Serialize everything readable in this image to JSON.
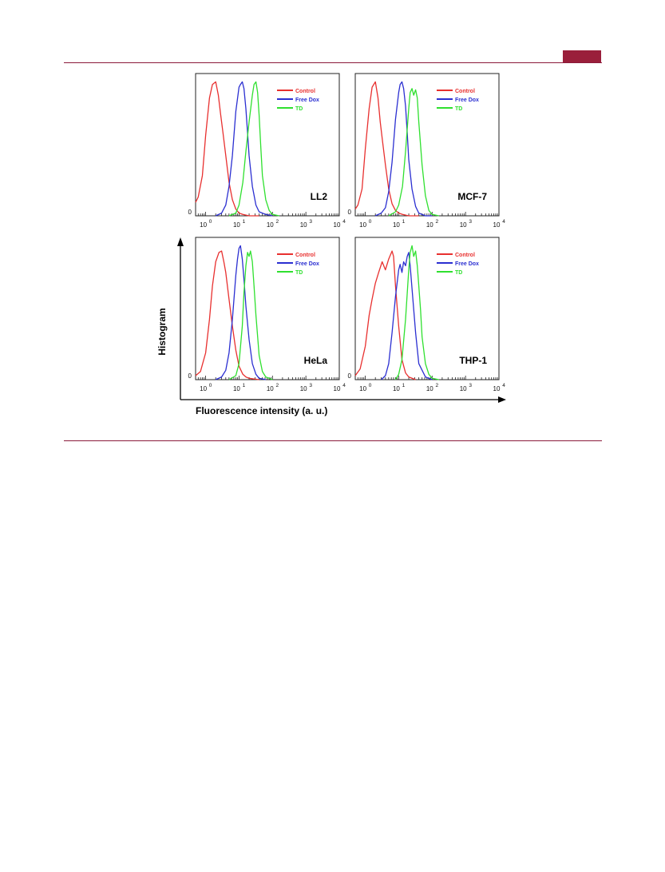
{
  "colors": {
    "rule": "#8b1a3a",
    "tab": "#9a1f3b",
    "control": "#e8302f",
    "free_dox": "#2b2fd1",
    "td": "#2fe02f"
  },
  "figure": {
    "ylabel": "Histogram",
    "xlabel": "Fluorescence intensity (a. u.)"
  },
  "chart_data": [
    {
      "type": "line",
      "title": "LL2",
      "xscale": "log",
      "xlim": [
        0.5,
        10000
      ],
      "ylim": [
        0,
        1.05
      ],
      "ytick_labels": [
        "0"
      ],
      "xticks": [
        {
          "base": "10",
          "exp": "0"
        },
        {
          "base": "10",
          "exp": "1"
        },
        {
          "base": "10",
          "exp": "2"
        },
        {
          "base": "10",
          "exp": "3"
        },
        {
          "base": "10",
          "exp": "4"
        }
      ],
      "legend": {
        "position": "top-right",
        "entries": [
          "Control",
          "Free Dox",
          "TD"
        ]
      },
      "series": [
        {
          "name": "Control",
          "x": [
            0.5,
            0.6,
            0.8,
            1.0,
            1.3,
            1.6,
            2.0,
            2.4,
            2.8,
            3.3,
            4.0,
            5.0,
            6.3,
            8.0,
            10,
            13,
            20,
            40
          ],
          "y": [
            0.1,
            0.14,
            0.3,
            0.6,
            0.88,
            0.98,
            1.0,
            0.9,
            0.76,
            0.62,
            0.45,
            0.25,
            0.12,
            0.05,
            0.02,
            0.01,
            0.0,
            0.0
          ]
        },
        {
          "name": "Free Dox",
          "x": [
            2,
            3,
            4,
            5,
            6.3,
            8,
            10,
            11,
            12.5,
            14,
            16,
            18,
            20,
            25,
            32,
            40,
            63,
            100
          ],
          "y": [
            0.0,
            0.02,
            0.08,
            0.22,
            0.45,
            0.78,
            0.96,
            0.98,
            1.0,
            0.95,
            0.8,
            0.62,
            0.45,
            0.22,
            0.08,
            0.03,
            0.01,
            0.0
          ]
        },
        {
          "name": "TD",
          "x": [
            5,
            8,
            10,
            13,
            16,
            20,
            25,
            28,
            32,
            36,
            40,
            45,
            50,
            63,
            80,
            100,
            160
          ],
          "y": [
            0.0,
            0.02,
            0.08,
            0.25,
            0.48,
            0.7,
            0.9,
            0.98,
            1.0,
            0.92,
            0.75,
            0.5,
            0.3,
            0.12,
            0.04,
            0.01,
            0.0
          ]
        }
      ]
    },
    {
      "type": "line",
      "title": "MCF-7",
      "xscale": "log",
      "xlim": [
        0.5,
        10000
      ],
      "ylim": [
        0,
        1.05
      ],
      "ytick_labels": [
        "0"
      ],
      "xticks": [
        {
          "base": "10",
          "exp": "0"
        },
        {
          "base": "10",
          "exp": "1"
        },
        {
          "base": "10",
          "exp": "2"
        },
        {
          "base": "10",
          "exp": "3"
        },
        {
          "base": "10",
          "exp": "4"
        }
      ],
      "legend": {
        "position": "top-right",
        "entries": [
          "Control",
          "Free Dox",
          "TD"
        ]
      },
      "series": [
        {
          "name": "Control",
          "x": [
            0.5,
            0.6,
            0.8,
            1.0,
            1.3,
            1.6,
            2.0,
            2.4,
            2.8,
            3.3,
            4.0,
            5.0,
            6.3,
            8.0,
            10,
            13,
            20,
            40
          ],
          "y": [
            0.05,
            0.08,
            0.2,
            0.5,
            0.8,
            0.96,
            1.0,
            0.88,
            0.7,
            0.55,
            0.38,
            0.2,
            0.09,
            0.04,
            0.02,
            0.01,
            0.0,
            0.0
          ]
        },
        {
          "name": "Free Dox",
          "x": [
            2,
            3,
            4,
            5,
            6.3,
            8,
            10,
            11,
            12.5,
            14,
            16,
            18,
            20,
            25,
            32,
            40,
            63,
            100
          ],
          "y": [
            0.0,
            0.02,
            0.06,
            0.18,
            0.4,
            0.72,
            0.92,
            0.98,
            1.0,
            0.95,
            0.82,
            0.62,
            0.42,
            0.2,
            0.07,
            0.02,
            0.0,
            0.0
          ]
        },
        {
          "name": "TD",
          "x": [
            5,
            8,
            10,
            13,
            16,
            20,
            22,
            25,
            28,
            32,
            36,
            40,
            50,
            63,
            80,
            100,
            160
          ],
          "y": [
            0.0,
            0.03,
            0.08,
            0.22,
            0.48,
            0.8,
            0.92,
            0.95,
            0.9,
            0.94,
            0.88,
            0.7,
            0.38,
            0.15,
            0.04,
            0.01,
            0.0
          ]
        }
      ]
    },
    {
      "type": "line",
      "title": "HeLa",
      "xscale": "log",
      "xlim": [
        0.5,
        10000
      ],
      "ylim": [
        0,
        1.05
      ],
      "ytick_labels": [
        "0"
      ],
      "xticks": [
        {
          "base": "10",
          "exp": "0"
        },
        {
          "base": "10",
          "exp": "1"
        },
        {
          "base": "10",
          "exp": "2"
        },
        {
          "base": "10",
          "exp": "3"
        },
        {
          "base": "10",
          "exp": "4"
        }
      ],
      "legend": {
        "position": "top-right",
        "entries": [
          "Control",
          "Free Dox",
          "TD"
        ]
      },
      "series": [
        {
          "name": "Control",
          "x": [
            0.5,
            0.7,
            1.0,
            1.3,
            1.6,
            2.0,
            2.5,
            3.0,
            3.5,
            4.0,
            5.0,
            6.3,
            8.0,
            10,
            13,
            16,
            20,
            40
          ],
          "y": [
            0.03,
            0.06,
            0.2,
            0.45,
            0.7,
            0.88,
            0.95,
            0.96,
            0.88,
            0.8,
            0.6,
            0.4,
            0.22,
            0.1,
            0.04,
            0.02,
            0.01,
            0.0
          ]
        },
        {
          "name": "Free Dox",
          "x": [
            2,
            3,
            4,
            5,
            6.3,
            8,
            9,
            10,
            11,
            12.5,
            14,
            16,
            20,
            25,
            32,
            40,
            63
          ],
          "y": [
            0.0,
            0.02,
            0.07,
            0.2,
            0.45,
            0.78,
            0.9,
            0.98,
            1.0,
            0.9,
            0.75,
            0.55,
            0.3,
            0.12,
            0.04,
            0.01,
            0.0
          ]
        },
        {
          "name": "TD",
          "x": [
            5,
            8,
            10,
            12.5,
            14,
            16,
            18,
            20,
            22,
            25,
            28,
            32,
            40,
            50,
            63,
            80,
            100
          ],
          "y": [
            0.0,
            0.03,
            0.12,
            0.4,
            0.65,
            0.85,
            0.95,
            0.92,
            0.96,
            0.88,
            0.7,
            0.48,
            0.18,
            0.06,
            0.02,
            0.01,
            0.0
          ]
        }
      ]
    },
    {
      "type": "line",
      "title": "THP-1",
      "xscale": "log",
      "xlim": [
        0.5,
        10000
      ],
      "ylim": [
        0,
        1.05
      ],
      "ytick_labels": [
        "0"
      ],
      "xticks": [
        {
          "base": "10",
          "exp": "0"
        },
        {
          "base": "10",
          "exp": "1"
        },
        {
          "base": "10",
          "exp": "2"
        },
        {
          "base": "10",
          "exp": "3"
        },
        {
          "base": "10",
          "exp": "4"
        }
      ],
      "legend": {
        "position": "top-right",
        "entries": [
          "Control",
          "Free Dox",
          "TD"
        ]
      },
      "series": [
        {
          "name": "Control",
          "x": [
            0.5,
            0.7,
            1.0,
            1.3,
            1.6,
            2.0,
            2.5,
            3.2,
            4.0,
            5.0,
            6.3,
            7.0,
            8.0,
            10,
            12.5,
            16,
            20,
            32
          ],
          "y": [
            0.03,
            0.08,
            0.25,
            0.48,
            0.6,
            0.72,
            0.8,
            0.88,
            0.82,
            0.9,
            0.96,
            0.92,
            0.7,
            0.4,
            0.15,
            0.05,
            0.02,
            0.0
          ]
        },
        {
          "name": "Free Dox",
          "x": [
            3,
            4,
            5,
            6.3,
            8,
            10,
            11,
            12.5,
            14,
            16,
            18,
            20,
            22,
            25,
            32,
            40,
            63,
            100
          ],
          "y": [
            0.0,
            0.03,
            0.12,
            0.35,
            0.62,
            0.82,
            0.86,
            0.8,
            0.88,
            0.85,
            0.92,
            0.95,
            0.85,
            0.68,
            0.35,
            0.12,
            0.02,
            0.0
          ]
        },
        {
          "name": "TD",
          "x": [
            8,
            10,
            12.5,
            16,
            20,
            22,
            25,
            28,
            32,
            36,
            40,
            45,
            50,
            63,
            80,
            100,
            160
          ],
          "y": [
            0.0,
            0.04,
            0.15,
            0.45,
            0.82,
            0.95,
            1.0,
            0.92,
            0.96,
            0.85,
            0.7,
            0.52,
            0.32,
            0.12,
            0.04,
            0.01,
            0.0
          ]
        }
      ]
    }
  ]
}
